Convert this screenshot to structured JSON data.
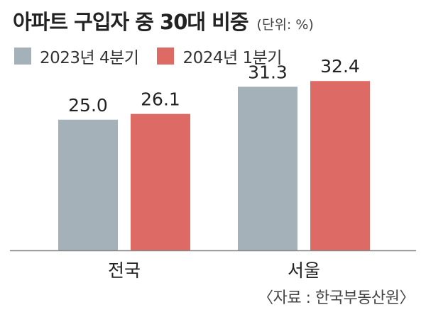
{
  "chart_data": {
    "type": "bar",
    "title": "아파트 구입자 중 30대 비중",
    "unit_note": "(단위: %)",
    "categories": [
      "전국",
      "서울"
    ],
    "series": [
      {
        "name": "2023년 4분기",
        "values": [
          25.0,
          31.3
        ],
        "color": "#a4b1b8"
      },
      {
        "name": "2024년 1분기",
        "values": [
          26.1,
          32.4
        ],
        "color": "#de6a65"
      }
    ],
    "value_labels": [
      [
        "25.0",
        "31.3"
      ],
      [
        "26.1",
        "32.4"
      ]
    ],
    "ylim": [
      0,
      40
    ],
    "grid": false,
    "legend_position": "top-left",
    "source": "〈자료 : 한국부동산원〉"
  }
}
